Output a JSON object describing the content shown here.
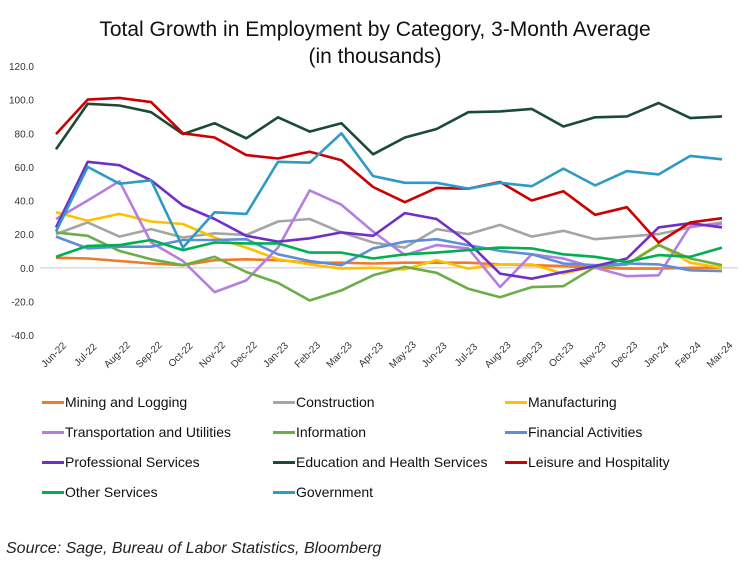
{
  "chart_data": {
    "type": "line",
    "title": "Total Growth in Employment by Category, 3-Month Average",
    "subtitle": "(in thousands)",
    "xlabel": "",
    "ylabel": "",
    "ylim": [
      -40,
      120
    ],
    "yticks": [
      120,
      100,
      80,
      60,
      40,
      20,
      0,
      -20,
      -40
    ],
    "ytick_labels": [
      "120.0",
      "100.0",
      "80.0",
      "60.0",
      "40.0",
      "20.0",
      "0.0",
      "-20.0",
      "-40.0"
    ],
    "grid": false,
    "zero_line": true,
    "legend_position": "bottom",
    "x": [
      "Jun-22",
      "Jul-22",
      "Aug-22",
      "Sep-22",
      "Oct-22",
      "Nov-22",
      "Dec-22",
      "Jan-23",
      "Feb-23",
      "Mar-23",
      "Apr-23",
      "May-23",
      "Jun-23",
      "Jul-23",
      "Aug-23",
      "Sep-23",
      "Oct-23",
      "Nov-23",
      "Dec-23",
      "Jan-24",
      "Feb-24",
      "Mar-24"
    ],
    "series": [
      {
        "name": "Mining and Logging",
        "color": "#f07a2a",
        "values": [
          6,
          5.5,
          4,
          2.5,
          1.5,
          4.5,
          5,
          4.5,
          3,
          3,
          2.5,
          3,
          3,
          3,
          2,
          1.5,
          1,
          0,
          -0.5,
          -0.5,
          0,
          0
        ]
      },
      {
        "name": "Construction",
        "color": "#a5a5a5",
        "values": [
          20,
          27,
          18.5,
          23,
          18,
          20.5,
          19.5,
          27.5,
          29,
          21,
          15,
          12,
          23,
          20,
          25.5,
          18.5,
          22,
          17,
          18.5,
          20,
          24,
          27
        ]
      },
      {
        "name": "Manufacturing",
        "color": "#ffc000",
        "values": [
          33,
          28,
          32,
          27.5,
          26,
          18,
          12,
          5,
          2,
          -0.5,
          0,
          -1,
          4.5,
          -0.5,
          2,
          2,
          -3.5,
          1,
          2,
          14,
          3,
          0
        ]
      },
      {
        "name": "Transportation and Utilities",
        "color": "#b57ee0",
        "values": [
          29,
          40,
          51.5,
          15,
          4,
          -14.5,
          -7.5,
          12,
          46,
          37.5,
          21.5,
          7.5,
          13.5,
          11.5,
          -11.5,
          8,
          5.5,
          0,
          -5,
          -4.5,
          25,
          26
        ]
      },
      {
        "name": "Information",
        "color": "#6bae48",
        "values": [
          21,
          19,
          10,
          5,
          1.5,
          6.5,
          -2.5,
          -9,
          -19.5,
          -13.5,
          -4.5,
          0.5,
          -3,
          -12.5,
          -17.5,
          -11.5,
          -11,
          0.5,
          2,
          13.5,
          5.5,
          1.5
        ]
      },
      {
        "name": "Financial Activities",
        "color": "#5f8ed8",
        "values": [
          18.5,
          11.5,
          12.5,
          12.5,
          16.5,
          16.5,
          17,
          8,
          4,
          1.5,
          11.5,
          15.5,
          17,
          13.5,
          10,
          8,
          2.5,
          1.5,
          2.5,
          2,
          -1.5,
          -2
        ]
      },
      {
        "name": "Professional Services",
        "color": "#7030c8",
        "values": [
          24,
          63,
          61,
          52,
          37,
          29,
          19,
          15.5,
          17.5,
          21,
          19,
          32.5,
          29,
          15,
          -3.5,
          -6.5,
          -2.5,
          1,
          5.5,
          24,
          26.5,
          24
        ]
      },
      {
        "name": "Education and Health Services",
        "color": "#1b4b35",
        "values": [
          70.5,
          97.5,
          96.5,
          92.5,
          79.5,
          86,
          77,
          89.5,
          81,
          86,
          67.5,
          77.5,
          82.5,
          92.5,
          93,
          94.5,
          84,
          89.5,
          90,
          98,
          89,
          90
        ]
      },
      {
        "name": "Leisure and Hospitality",
        "color": "#cc0000",
        "values": [
          79.5,
          100,
          101,
          98.5,
          80,
          77.5,
          67,
          65,
          69,
          64,
          48,
          39,
          47.5,
          47,
          51,
          40,
          45.5,
          31.5,
          36,
          15,
          27,
          29.5
        ]
      },
      {
        "name": "Other Services",
        "color": "#00b050",
        "values": [
          6.5,
          13,
          13.5,
          16.5,
          10.5,
          15,
          14.5,
          14.5,
          9,
          9,
          5.5,
          8,
          9,
          10.5,
          12,
          11.5,
          8,
          6.5,
          3.5,
          7.5,
          6.5,
          12
        ]
      },
      {
        "name": "Government",
        "color": "#2e9ac6",
        "values": [
          21.5,
          60,
          50,
          52,
          12,
          33,
          32,
          63,
          62.5,
          80,
          54.5,
          50.5,
          50.5,
          47,
          50.5,
          48.5,
          59,
          49,
          57.5,
          55.5,
          66.5,
          64.5
        ]
      }
    ]
  },
  "source_note": "Source: Sage, Bureau of Labor Statistics, Bloomberg"
}
